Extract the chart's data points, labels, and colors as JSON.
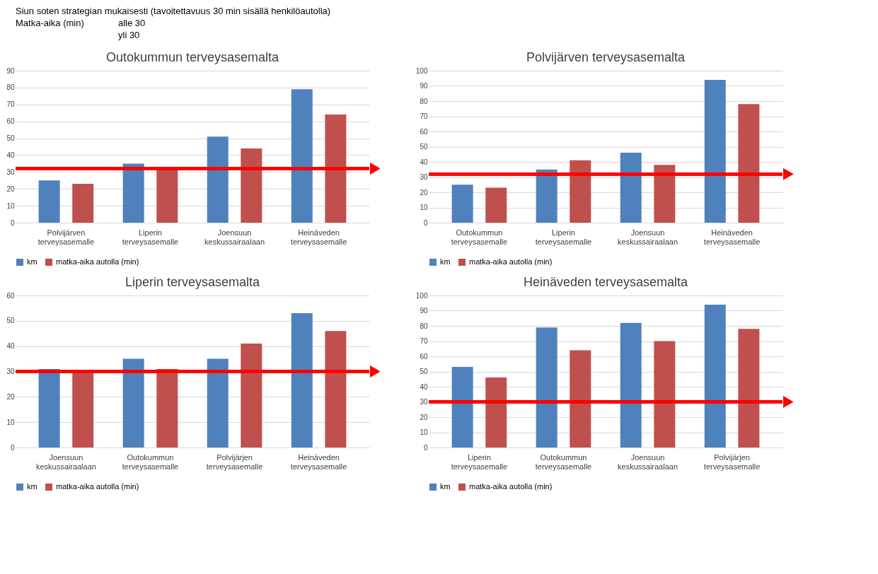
{
  "chart_data": [
    {
      "type": "bar",
      "title": "Outokummun terveysasemalta",
      "annotations": [
        "Siun soten strategian mukaisesti (tavoitettavuus 30 min sisällä henkilöautolla)",
        "Matka-aika (min)",
        "alle 30",
        "yli 30"
      ],
      "categories": [
        "Polvijärven terveysasemalle",
        "Liperin terveysasemalle",
        "Joensuun keskussairaalaan",
        "Heinäveden terveysasemalle"
      ],
      "series": [
        {
          "name": "km",
          "color": "#4f81bd",
          "values": [
            25,
            35,
            51,
            79
          ]
        },
        {
          "name": "matka-aika autolla (min)",
          "color": "#c0504d",
          "values": [
            23,
            31,
            44,
            64
          ]
        }
      ],
      "ylim": [
        0,
        90
      ],
      "yticks": [
        0,
        10,
        20,
        30,
        40,
        50,
        60,
        70,
        80,
        90
      ],
      "grid": "y",
      "legend": "bottom",
      "ref_lines": [
        {
          "axis": "y",
          "value": 32,
          "color": "#ff0000"
        }
      ]
    },
    {
      "type": "bar",
      "title": "Polvijärven terveysasemalta",
      "categories": [
        "Outokummun terveysasemalle",
        "Liperin terveysasemalle",
        "Joensuun keskussairaalaan",
        "Heinäveden terveysasemalle"
      ],
      "series": [
        {
          "name": "km",
          "color": "#4f81bd",
          "values": [
            25,
            35,
            46,
            94
          ]
        },
        {
          "name": "matka-aika autolla (min)",
          "color": "#c0504d",
          "values": [
            23,
            41,
            38,
            78
          ]
        }
      ],
      "ylim": [
        0,
        100
      ],
      "yticks": [
        0,
        10,
        20,
        30,
        40,
        50,
        60,
        70,
        80,
        90,
        100
      ],
      "grid": "y",
      "legend": "bottom",
      "ref_lines": [
        {
          "axis": "y",
          "value": 32,
          "color": "#ff0000"
        }
      ]
    },
    {
      "type": "bar",
      "title": "Liperin terveysasemalta",
      "categories": [
        "Joensuun keskussairaalaan",
        "Outokummun terveysasemalle",
        "Polvijärjen terveysasemalle",
        "Heinäveden terveysasemalle"
      ],
      "series": [
        {
          "name": "km",
          "color": "#4f81bd",
          "values": [
            31,
            35,
            35,
            53
          ]
        },
        {
          "name": "matka-aika autolla (min)",
          "color": "#c0504d",
          "values": [
            30,
            31,
            41,
            46
          ]
        }
      ],
      "ylim": [
        0,
        60
      ],
      "yticks": [
        0,
        10,
        20,
        30,
        40,
        50,
        60
      ],
      "grid": "y",
      "legend": "bottom",
      "ref_lines": [
        {
          "axis": "y",
          "value": 30,
          "color": "#ff0000"
        }
      ]
    },
    {
      "type": "bar",
      "title": "Heinäveden terveysasemalta",
      "categories": [
        "Liperin terveysasemalle",
        "Outokummun terveysasemalle",
        "Joensuun keskussairaalaan",
        "Polvijärjen terveysasemalle"
      ],
      "series": [
        {
          "name": "km",
          "color": "#4f81bd",
          "values": [
            53,
            79,
            82,
            94
          ]
        },
        {
          "name": "matka-aika autolla (min)",
          "color": "#c0504d",
          "values": [
            46,
            64,
            70,
            78
          ]
        }
      ],
      "ylim": [
        0,
        100
      ],
      "yticks": [
        0,
        10,
        20,
        30,
        40,
        50,
        60,
        70,
        80,
        90,
        100
      ],
      "grid": "y",
      "legend": "bottom",
      "ref_lines": [
        {
          "axis": "y",
          "value": 30,
          "color": "#ff0000"
        }
      ]
    }
  ]
}
